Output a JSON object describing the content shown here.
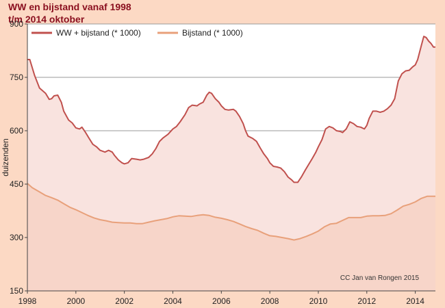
{
  "chart_data": {
    "type": "area",
    "title": "WW en bijstand vanaf 1998",
    "subtitle": "t/m 2014 oktober",
    "xlabel": "",
    "ylabel": "duizenden",
    "xlim": [
      1998,
      2014.83
    ],
    "ylim": [
      150,
      900
    ],
    "x_ticks": [
      "1998",
      "2000",
      "2002",
      "2004",
      "2006",
      "2008",
      "2010",
      "2012",
      "2014"
    ],
    "y_ticks": [
      "150",
      "300",
      "450",
      "600",
      "750",
      "900"
    ],
    "grid": "horizontal",
    "legend_position": "top-left",
    "credit": "CC Jan van Rongen 2015",
    "colors": {
      "background": "#fcd9c4",
      "plot_background": "#ffffff",
      "gridline": "#9a9a9a",
      "ww_line": "#c0504d",
      "ww_fill": "#f9e3df",
      "bijstand_line": "#e8a07a",
      "bijstand_fill": "#f7d5c9"
    },
    "series": [
      {
        "name": "WW + bijstand (* 1000)",
        "points": [
          [
            1998.0,
            800
          ],
          [
            1998.1,
            800
          ],
          [
            1998.3,
            755
          ],
          [
            1998.5,
            720
          ],
          [
            1998.75,
            705
          ],
          [
            1998.9,
            688
          ],
          [
            1999.0,
            690
          ],
          [
            1999.1,
            698
          ],
          [
            1999.25,
            700
          ],
          [
            1999.4,
            680
          ],
          [
            1999.5,
            655
          ],
          [
            1999.7,
            630
          ],
          [
            1999.85,
            622
          ],
          [
            2000.0,
            608
          ],
          [
            2000.15,
            605
          ],
          [
            2000.25,
            610
          ],
          [
            2000.4,
            595
          ],
          [
            2000.55,
            578
          ],
          [
            2000.7,
            562
          ],
          [
            2000.85,
            555
          ],
          [
            2001.0,
            545
          ],
          [
            2001.2,
            540
          ],
          [
            2001.35,
            545
          ],
          [
            2001.5,
            540
          ],
          [
            2001.6,
            530
          ],
          [
            2001.75,
            518
          ],
          [
            2001.9,
            510
          ],
          [
            2002.0,
            507
          ],
          [
            2002.15,
            510
          ],
          [
            2002.3,
            522
          ],
          [
            2002.5,
            520
          ],
          [
            2002.65,
            518
          ],
          [
            2002.8,
            520
          ],
          [
            2003.0,
            525
          ],
          [
            2003.15,
            535
          ],
          [
            2003.3,
            550
          ],
          [
            2003.45,
            570
          ],
          [
            2003.6,
            580
          ],
          [
            2003.8,
            590
          ],
          [
            2004.0,
            605
          ],
          [
            2004.15,
            612
          ],
          [
            2004.3,
            625
          ],
          [
            2004.5,
            645
          ],
          [
            2004.65,
            665
          ],
          [
            2004.8,
            672
          ],
          [
            2005.0,
            670
          ],
          [
            2005.1,
            675
          ],
          [
            2005.25,
            680
          ],
          [
            2005.4,
            700
          ],
          [
            2005.5,
            708
          ],
          [
            2005.6,
            705
          ],
          [
            2005.75,
            690
          ],
          [
            2005.9,
            680
          ],
          [
            2006.0,
            670
          ],
          [
            2006.15,
            660
          ],
          [
            2006.3,
            658
          ],
          [
            2006.5,
            660
          ],
          [
            2006.6,
            655
          ],
          [
            2006.75,
            640
          ],
          [
            2006.9,
            620
          ],
          [
            2007.0,
            600
          ],
          [
            2007.1,
            585
          ],
          [
            2007.3,
            578
          ],
          [
            2007.45,
            570
          ],
          [
            2007.6,
            552
          ],
          [
            2007.75,
            535
          ],
          [
            2007.9,
            522
          ],
          [
            2008.0,
            510
          ],
          [
            2008.15,
            500
          ],
          [
            2008.3,
            498
          ],
          [
            2008.45,
            495
          ],
          [
            2008.6,
            485
          ],
          [
            2008.75,
            470
          ],
          [
            2008.9,
            462
          ],
          [
            2009.0,
            455
          ],
          [
            2009.15,
            455
          ],
          [
            2009.3,
            470
          ],
          [
            2009.45,
            488
          ],
          [
            2009.6,
            505
          ],
          [
            2009.75,
            522
          ],
          [
            2009.9,
            540
          ],
          [
            2010.0,
            555
          ],
          [
            2010.15,
            575
          ],
          [
            2010.3,
            605
          ],
          [
            2010.45,
            612
          ],
          [
            2010.6,
            608
          ],
          [
            2010.75,
            600
          ],
          [
            2010.9,
            598
          ],
          [
            2011.0,
            595
          ],
          [
            2011.15,
            605
          ],
          [
            2011.3,
            625
          ],
          [
            2011.45,
            620
          ],
          [
            2011.6,
            612
          ],
          [
            2011.75,
            610
          ],
          [
            2011.9,
            605
          ],
          [
            2012.0,
            615
          ],
          [
            2012.1,
            635
          ],
          [
            2012.25,
            655
          ],
          [
            2012.4,
            655
          ],
          [
            2012.55,
            652
          ],
          [
            2012.7,
            655
          ],
          [
            2012.85,
            662
          ],
          [
            2013.0,
            672
          ],
          [
            2013.15,
            690
          ],
          [
            2013.3,
            740
          ],
          [
            2013.45,
            760
          ],
          [
            2013.6,
            768
          ],
          [
            2013.75,
            770
          ],
          [
            2013.9,
            780
          ],
          [
            2014.0,
            785
          ],
          [
            2014.1,
            800
          ],
          [
            2014.25,
            840
          ],
          [
            2014.35,
            865
          ],
          [
            2014.45,
            862
          ],
          [
            2014.55,
            852
          ],
          [
            2014.65,
            845
          ],
          [
            2014.75,
            835
          ],
          [
            2014.83,
            835
          ]
        ]
      },
      {
        "name": "Bijstand (* 1000)",
        "points": [
          [
            1998.0,
            452
          ],
          [
            1998.2,
            440
          ],
          [
            1998.5,
            428
          ],
          [
            1998.75,
            418
          ],
          [
            1999.0,
            412
          ],
          [
            1999.25,
            405
          ],
          [
            1999.5,
            395
          ],
          [
            1999.75,
            385
          ],
          [
            2000.0,
            378
          ],
          [
            2000.25,
            370
          ],
          [
            2000.5,
            362
          ],
          [
            2000.75,
            355
          ],
          [
            2001.0,
            350
          ],
          [
            2001.25,
            347
          ],
          [
            2001.5,
            343
          ],
          [
            2001.75,
            342
          ],
          [
            2002.0,
            341
          ],
          [
            2002.25,
            341
          ],
          [
            2002.5,
            339
          ],
          [
            2002.75,
            339
          ],
          [
            2003.0,
            343
          ],
          [
            2003.25,
            347
          ],
          [
            2003.5,
            350
          ],
          [
            2003.75,
            353
          ],
          [
            2004.0,
            358
          ],
          [
            2004.25,
            361
          ],
          [
            2004.5,
            360
          ],
          [
            2004.75,
            359
          ],
          [
            2005.0,
            362
          ],
          [
            2005.25,
            364
          ],
          [
            2005.5,
            362
          ],
          [
            2005.75,
            357
          ],
          [
            2006.0,
            354
          ],
          [
            2006.25,
            350
          ],
          [
            2006.5,
            345
          ],
          [
            2006.75,
            338
          ],
          [
            2007.0,
            331
          ],
          [
            2007.25,
            325
          ],
          [
            2007.5,
            320
          ],
          [
            2007.75,
            312
          ],
          [
            2008.0,
            305
          ],
          [
            2008.25,
            303
          ],
          [
            2008.5,
            300
          ],
          [
            2008.75,
            297
          ],
          [
            2009.0,
            293
          ],
          [
            2009.25,
            297
          ],
          [
            2009.5,
            303
          ],
          [
            2009.75,
            310
          ],
          [
            2010.0,
            318
          ],
          [
            2010.25,
            330
          ],
          [
            2010.5,
            338
          ],
          [
            2010.75,
            340
          ],
          [
            2011.0,
            348
          ],
          [
            2011.25,
            356
          ],
          [
            2011.5,
            356
          ],
          [
            2011.75,
            356
          ],
          [
            2012.0,
            360
          ],
          [
            2012.25,
            361
          ],
          [
            2012.5,
            361
          ],
          [
            2012.75,
            362
          ],
          [
            2013.0,
            367
          ],
          [
            2013.25,
            377
          ],
          [
            2013.5,
            388
          ],
          [
            2013.75,
            393
          ],
          [
            2014.0,
            400
          ],
          [
            2014.25,
            410
          ],
          [
            2014.5,
            416
          ],
          [
            2014.83,
            416
          ]
        ]
      }
    ]
  }
}
